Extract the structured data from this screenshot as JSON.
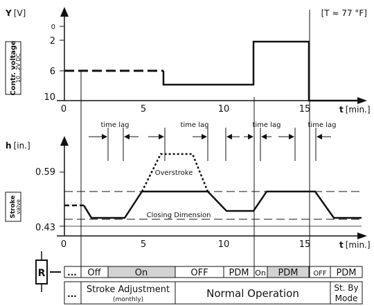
{
  "top_chart": {
    "y_label_bold": "Y",
    "y_label_unit": "[V]",
    "temp_note": "[T ≈ 77 °F]",
    "side_label_main": "Contr. voltage",
    "side_label_sub": "10...2V DC",
    "y_ticks": [
      "0",
      "2",
      "6",
      "10"
    ],
    "x_ticks": [
      "0",
      "5",
      "10",
      "15"
    ],
    "x_label_bold": "t",
    "x_label_unit": "[min.]"
  },
  "bottom_chart": {
    "y_label_bold": "h",
    "y_label_unit": "[in.]",
    "side_label_main": "Stroke",
    "side_label_sub": "valve",
    "y_ticks": [
      "0.59",
      "0.43"
    ],
    "x_ticks": [
      "0",
      "5",
      "10",
      "15"
    ],
    "x_label_bold": "t",
    "x_label_unit": "[min.]",
    "time_lag_labels": [
      "time lag",
      "time lag",
      "time lag",
      "time lag",
      "time lag"
    ],
    "overstroke_label": "Overstroke",
    "closing_dimension_label": "Closing Dimension"
  },
  "relay": {
    "label": "R",
    "modes": [
      "...",
      "Off",
      "On",
      "OFF",
      "PDM",
      "On",
      "PDM",
      "OFF",
      "PDM"
    ],
    "phases": [
      "...",
      "Stroke Adjustment",
      "(monthly)",
      "Normal Operation",
      "St. By",
      "Mode"
    ]
  },
  "colors": {
    "line": "#111111",
    "on_fill": "#d3d3d3"
  }
}
